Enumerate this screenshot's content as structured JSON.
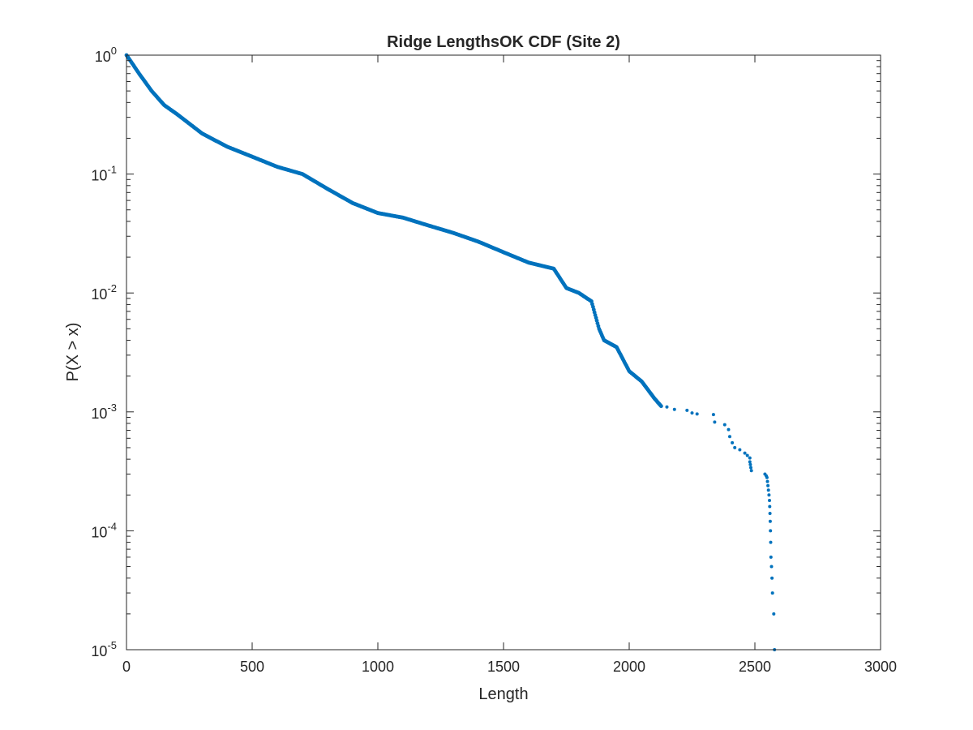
{
  "chart_data": {
    "type": "scatter",
    "title": "Ridge LengthsOK CDF (Site 2)",
    "xlabel": "Length",
    "ylabel": "P(X > x)",
    "xlim": [
      0,
      3000
    ],
    "ylim": [
      1e-05,
      1
    ],
    "yscale": "log",
    "grid": false,
    "box": true,
    "xticks": [
      0,
      500,
      1000,
      1500,
      2000,
      2500,
      3000
    ],
    "xtick_labels": [
      "0",
      "500",
      "1000",
      "1500",
      "2000",
      "2500",
      "3000"
    ],
    "yticks": [
      1e-05,
      0.0001,
      0.001,
      0.01,
      0.1,
      1
    ],
    "ytick_labels": [
      {
        "base": "10",
        "exp": "-5"
      },
      {
        "base": "10",
        "exp": "-4"
      },
      {
        "base": "10",
        "exp": "-3"
      },
      {
        "base": "10",
        "exp": "-2"
      },
      {
        "base": "10",
        "exp": "-1"
      },
      {
        "base": "10",
        "exp": "0"
      }
    ],
    "series": [
      {
        "color": "#0072BD",
        "marker": "dot",
        "dense_curve": [
          [
            0,
            1.0
          ],
          [
            20,
            0.87
          ],
          [
            50,
            0.7
          ],
          [
            100,
            0.5
          ],
          [
            150,
            0.38
          ],
          [
            200,
            0.32
          ],
          [
            300,
            0.22
          ],
          [
            400,
            0.17
          ],
          [
            500,
            0.14
          ],
          [
            600,
            0.115
          ],
          [
            700,
            0.1
          ],
          [
            800,
            0.075
          ],
          [
            900,
            0.057
          ],
          [
            1000,
            0.047
          ],
          [
            1100,
            0.043
          ],
          [
            1200,
            0.037
          ],
          [
            1300,
            0.032
          ],
          [
            1400,
            0.027
          ],
          [
            1500,
            0.022
          ],
          [
            1600,
            0.018
          ],
          [
            1700,
            0.016
          ],
          [
            1750,
            0.011
          ],
          [
            1800,
            0.01
          ],
          [
            1850,
            0.0085
          ],
          [
            1880,
            0.005
          ],
          [
            1900,
            0.004
          ],
          [
            1950,
            0.0035
          ],
          [
            2000,
            0.0022
          ],
          [
            2050,
            0.0018
          ],
          [
            2100,
            0.0013
          ],
          [
            2130,
            0.0011
          ]
        ],
        "tail_points": [
          [
            2150,
            0.0011
          ],
          [
            2180,
            0.00105
          ],
          [
            2230,
            0.00103
          ],
          [
            2250,
            0.00098
          ],
          [
            2270,
            0.00096
          ],
          [
            2335,
            0.00095
          ],
          [
            2340,
            0.00082
          ],
          [
            2380,
            0.00078
          ],
          [
            2395,
            0.00071
          ],
          [
            2400,
            0.00062
          ],
          [
            2410,
            0.00055
          ],
          [
            2420,
            0.0005
          ],
          [
            2440,
            0.00048
          ],
          [
            2460,
            0.00045
          ],
          [
            2470,
            0.00043
          ],
          [
            2480,
            0.00041
          ],
          [
            2480,
            0.00038
          ],
          [
            2482,
            0.00036
          ],
          [
            2484,
            0.00034
          ],
          [
            2486,
            0.00032
          ],
          [
            2540,
            0.0003
          ],
          [
            2545,
            0.00029
          ],
          [
            2548,
            0.00028
          ],
          [
            2550,
            0.00026
          ],
          [
            2552,
            0.00024
          ],
          [
            2554,
            0.00022
          ],
          [
            2556,
            0.0002
          ],
          [
            2558,
            0.00018
          ],
          [
            2559,
            0.00016
          ],
          [
            2560,
            0.00014
          ],
          [
            2561,
            0.00012
          ],
          [
            2562,
            0.0001
          ],
          [
            2563,
            8e-05
          ],
          [
            2564,
            6e-05
          ],
          [
            2566,
            5e-05
          ],
          [
            2568,
            4e-05
          ],
          [
            2570,
            3e-05
          ],
          [
            2575,
            2e-05
          ],
          [
            2578,
            1e-05
          ]
        ]
      }
    ]
  }
}
